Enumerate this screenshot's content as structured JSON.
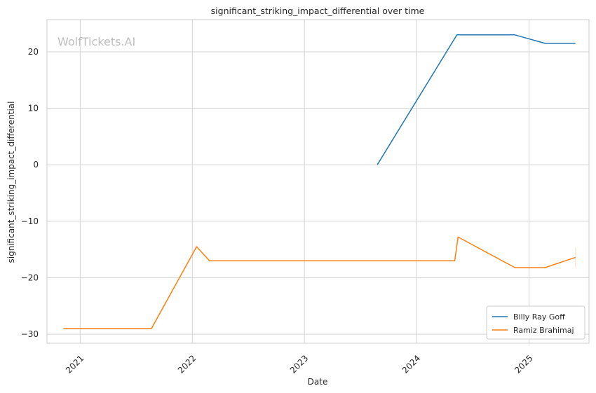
{
  "chart_data": {
    "type": "line",
    "title": "significant_striking_impact_differential over time",
    "xlabel": "Date",
    "ylabel": "significant_striking_impact_differential",
    "watermark": "WolfTickets.AI",
    "x_ticks": [
      "2021",
      "2022",
      "2023",
      "2024",
      "2025"
    ],
    "y_ticks": [
      "20",
      "10",
      "0",
      "−10",
      "−20",
      "−30"
    ],
    "xlim": [
      "2020-09-15",
      "2025-07-15"
    ],
    "ylim": [
      -31.6,
      25.7
    ],
    "grid": true,
    "legend_position": "lower-right",
    "series": [
      {
        "name": "Billy Ray Goff",
        "color": "#1f77b4",
        "points": [
          {
            "x": "2023-08-26",
            "y": 0
          },
          {
            "x": "2024-05-11",
            "y": 23
          },
          {
            "x": "2024-11-16",
            "y": 23
          },
          {
            "x": "2025-02-22",
            "y": 21.5
          },
          {
            "x": "2025-06-01",
            "y": 21.5
          }
        ]
      },
      {
        "name": "Ramiz Brahimaj",
        "color": "#ff7f0e",
        "points": [
          {
            "x": "2020-11-07",
            "y": -29
          },
          {
            "x": "2021-08-21",
            "y": -29
          },
          {
            "x": "2022-01-15",
            "y": -14.5
          },
          {
            "x": "2022-02-26",
            "y": -17
          },
          {
            "x": "2024-05-04",
            "y": -17
          },
          {
            "x": "2024-05-15",
            "y": -12.8
          },
          {
            "x": "2024-11-16",
            "y": -18.2
          },
          {
            "x": "2025-02-22",
            "y": -18.2
          },
          {
            "x": "2025-06-01",
            "y": -16.4
          }
        ]
      }
    ]
  }
}
